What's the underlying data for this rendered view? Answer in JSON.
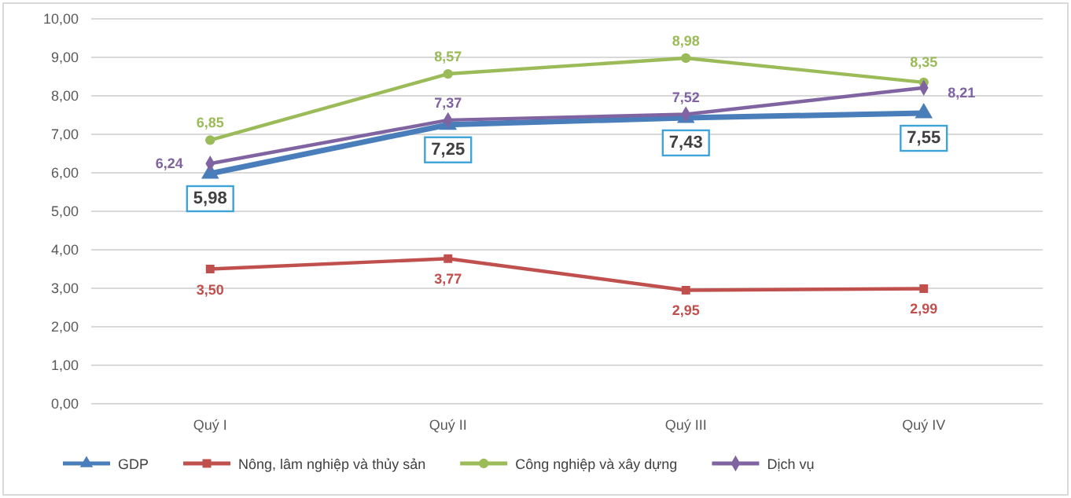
{
  "chart_data": {
    "type": "line",
    "categories": [
      "Quý I",
      "Quý II",
      "Quý III",
      "Quý IV"
    ],
    "ylim": [
      0,
      10
    ],
    "yticks": [
      {
        "value": 0,
        "label": "0,00"
      },
      {
        "value": 1,
        "label": "1,00"
      },
      {
        "value": 2,
        "label": "2,00"
      },
      {
        "value": 3,
        "label": "3,00"
      },
      {
        "value": 4,
        "label": "4,00"
      },
      {
        "value": 5,
        "label": "5,00"
      },
      {
        "value": 6,
        "label": "6,00"
      },
      {
        "value": 7,
        "label": "7,00"
      },
      {
        "value": 8,
        "label": "8,00"
      },
      {
        "value": 9,
        "label": "9,00"
      },
      {
        "value": 10,
        "label": "10,00"
      }
    ],
    "grid": "y",
    "legend": "bottom",
    "series": [
      {
        "name": "GDP",
        "color": "#4a7ebb",
        "marker": "triangle",
        "values": [
          5.98,
          7.25,
          7.43,
          7.55
        ],
        "value_labels": [
          "5,98",
          "7,25",
          "7,43",
          "7,55"
        ]
      },
      {
        "name": "Nông, lâm nghiệp và thủy sản",
        "color": "#c0504d",
        "marker": "square",
        "values": [
          3.5,
          3.77,
          2.95,
          2.99
        ],
        "value_labels": [
          "3,50",
          "3,77",
          "2,95",
          "2,99"
        ]
      },
      {
        "name": "Công nghiệp và xây dựng",
        "color": "#9bbb59",
        "marker": "circle",
        "values": [
          6.85,
          8.57,
          8.98,
          8.35
        ],
        "value_labels": [
          "6,85",
          "8,57",
          "8,98",
          "8,35"
        ]
      },
      {
        "name": "Dịch vụ",
        "color": "#8064a2",
        "marker": "diamond",
        "values": [
          6.24,
          7.37,
          7.52,
          8.21
        ],
        "value_labels": [
          "6,24",
          "7,37",
          "7,52",
          "8,21"
        ]
      }
    ]
  }
}
